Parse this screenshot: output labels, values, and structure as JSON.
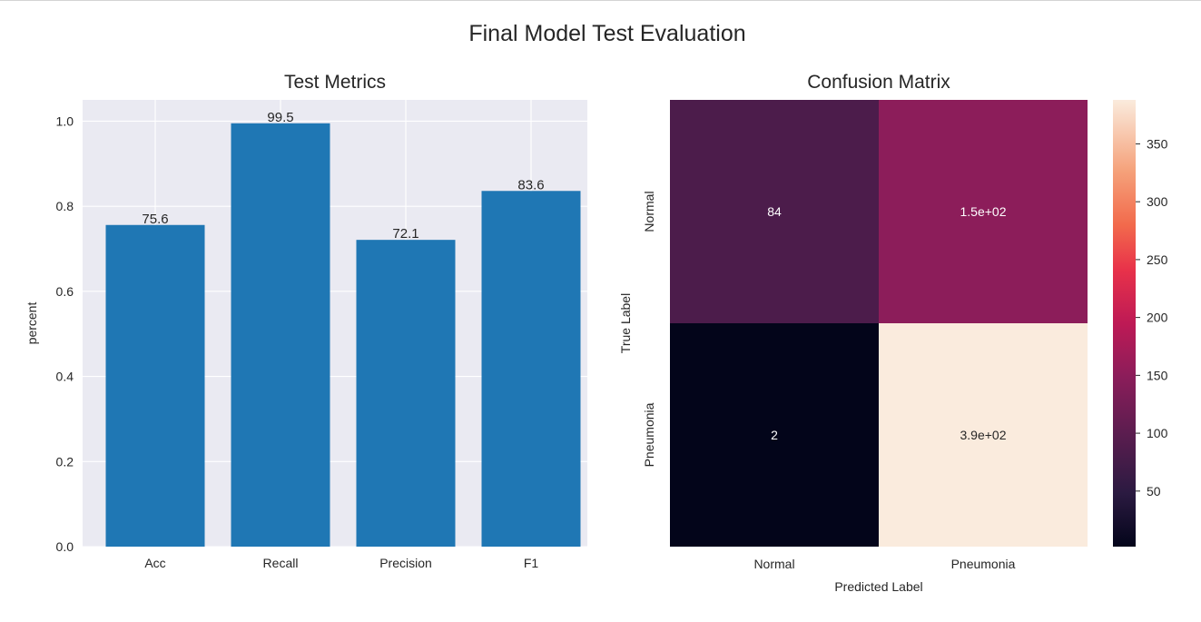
{
  "figure": {
    "title": "Final Model Test Evaluation"
  },
  "chart_data": [
    {
      "type": "bar",
      "title": "Test Metrics",
      "xlabel": "",
      "ylabel": "percent",
      "categories": [
        "Acc",
        "Recall",
        "Precision",
        "F1"
      ],
      "values": [
        0.756,
        0.995,
        0.721,
        0.836
      ],
      "data_labels": [
        "75.6",
        "99.5",
        "72.1",
        "83.6"
      ],
      "ylim": [
        0,
        1.05
      ],
      "yticks": [
        "0.0",
        "0.2",
        "0.4",
        "0.6",
        "0.8",
        "1.0"
      ],
      "grid": true,
      "colors": {
        "bar": "#1f77b4",
        "background": "#eaeaf2",
        "grid": "#ffffff"
      }
    },
    {
      "type": "heatmap",
      "title": "Confusion Matrix",
      "xlabel": "Predicted Label",
      "ylabel": "True Label",
      "x_categories": [
        "Normal",
        "Pneumonia"
      ],
      "y_categories": [
        "Normal",
        "Pneumonia"
      ],
      "values": [
        [
          84,
          150
        ],
        [
          2,
          388
        ]
      ],
      "annotations": [
        [
          "84",
          "1.5e+02"
        ],
        [
          "2",
          "3.9e+02"
        ]
      ],
      "colorbar": {
        "range": [
          2,
          388
        ],
        "ticks": [
          "50",
          "100",
          "150",
          "200",
          "250",
          "300",
          "350"
        ]
      },
      "colormap": "rocket"
    }
  ]
}
